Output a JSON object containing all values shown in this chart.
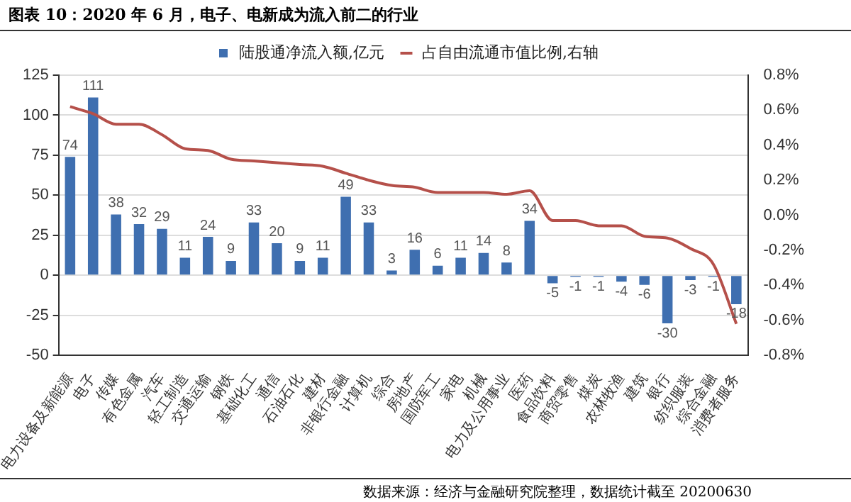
{
  "chart_data": {
    "type": "bar",
    "title": "图表 10：2020 年 6 月，电子、电新成为流入前二的行业",
    "categories": [
      "电力设备及新能源",
      "电子",
      "传媒",
      "有色金属",
      "汽车",
      "轻工制造",
      "交通运输",
      "钢铁",
      "基础化工",
      "通信",
      "石油石化",
      "建材",
      "非银行金融",
      "计算机",
      "综合",
      "房地产",
      "国防军工",
      "家电",
      "机械",
      "电力及公用事业",
      "医药",
      "食品饮料",
      "商贸零售",
      "煤炭",
      "农林牧渔",
      "建筑",
      "银行",
      "纺织服装",
      "综合金融",
      "消费者服务"
    ],
    "series": [
      {
        "name": "陆股通净流入额,亿元",
        "color": "#3f6fb0",
        "values": [
          74,
          111,
          38,
          32,
          29,
          11,
          24,
          9,
          33,
          20,
          9,
          11,
          49,
          33,
          3,
          16,
          6,
          11,
          14,
          8,
          34,
          -5,
          -1,
          -1,
          -4,
          -6,
          -30,
          -3,
          -1,
          -18
        ],
        "value_labels": [
          "74",
          "111",
          "38",
          "32",
          "29",
          "11",
          "24",
          "9",
          "33",
          "20",
          "9",
          "11",
          "49",
          "33",
          "3",
          "16",
          "6",
          "11",
          "14",
          "8",
          "34",
          "-5",
          "-1",
          "-1",
          "-4",
          "-6",
          "-30",
          "-3",
          "-1",
          "-18"
        ]
      },
      {
        "name": "占自由流通市值比例,右轴",
        "type": "line",
        "axis": "y2",
        "color": "#b5504a",
        "values": [
          0.62,
          0.58,
          0.52,
          0.52,
          0.46,
          0.38,
          0.37,
          0.32,
          0.31,
          0.3,
          0.29,
          0.28,
          0.24,
          0.2,
          0.17,
          0.16,
          0.13,
          0.13,
          0.13,
          0.12,
          0.14,
          -0.03,
          -0.03,
          -0.06,
          -0.06,
          -0.12,
          -0.13,
          -0.19,
          -0.28,
          -0.62
        ]
      }
    ],
    "ylim": [
      -50,
      125
    ],
    "yticks": [
      -50,
      -25,
      0,
      25,
      50,
      75,
      100,
      125
    ],
    "y2lim": [
      -0.8,
      0.8
    ],
    "y2ticks": [
      {
        "value": -0.8,
        "label": "-0.8%"
      },
      {
        "value": -0.6,
        "label": "-0.6%"
      },
      {
        "value": -0.4,
        "label": "-0.4%"
      },
      {
        "value": -0.2,
        "label": "-0.2%"
      },
      {
        "value": 0,
        "label": "0.0%"
      },
      {
        "value": 0.2,
        "label": "0.2%"
      },
      {
        "value": 0.4,
        "label": "0.4%"
      },
      {
        "value": 0.6,
        "label": "0.6%"
      },
      {
        "value": 0.8,
        "label": "0.8%"
      }
    ],
    "grid": "y",
    "legend": "top",
    "marker": "none",
    "line_style": "solid",
    "annotations": [
      "数据来源：经济与金融研究院整理，数据统计截至 20200630"
    ]
  }
}
